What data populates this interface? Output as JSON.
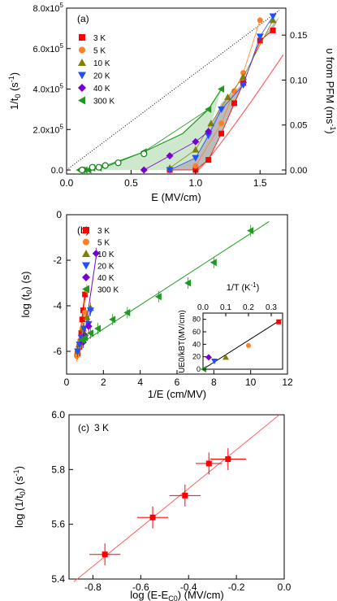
{
  "colors": {
    "3 K": "#ff0000",
    "5 K": "#ff7f27",
    "10 K": "#808000",
    "20 K": "#1f4fff",
    "40 K": "#7a00d0",
    "300 K": "#1e9a1e",
    "shade_gray": "#b4b4b4",
    "shade_green": "#c8e6c8",
    "fit_red": "#ff6060"
  },
  "chart_data": [
    {
      "panel": "(a)",
      "type": "scatter",
      "xlabel": "E (MV/cm)",
      "ylabel": "1/t0 (s-1)",
      "ylabel_right": "υ from PFM (ms-1)",
      "xlim": [
        0,
        1.7
      ],
      "ylim": [
        -20000,
        800000
      ],
      "ylim_right": [
        -0.0045,
        0.18
      ],
      "x_ticks": [
        "0.0",
        "0.5",
        "1.0",
        "1.5"
      ],
      "y_ticks": [
        "0.0",
        "2.0x10^5",
        "4.0x10^5",
        "6.0x10^5",
        "8.0x10^5"
      ],
      "y_ticks_right": [
        "0.00",
        "0.05",
        "0.10",
        "0.15"
      ],
      "legend": [
        "3 K",
        "5 K",
        "10 K",
        "20 K",
        "40 K",
        "300 K"
      ],
      "legend_position": "top-left",
      "series": [
        {
          "name": "3 K",
          "marker": "square",
          "x": [
            0.8,
            1.0,
            1.1,
            1.2,
            1.3,
            1.37,
            1.5,
            1.6
          ],
          "y": [
            0,
            0,
            50000,
            180000,
            330000,
            430000,
            640000,
            690000
          ]
        },
        {
          "name": "5 K",
          "marker": "circle",
          "x": [
            1.0,
            1.2,
            1.3,
            1.37,
            1.5
          ],
          "y": [
            20000,
            230000,
            390000,
            480000,
            740000
          ]
        },
        {
          "name": "10 K",
          "marker": "triangle-up",
          "x": [
            0.8,
            1.0,
            1.12,
            1.25,
            1.37,
            1.6
          ],
          "y": [
            10000,
            100000,
            230000,
            360000,
            460000,
            740000
          ]
        },
        {
          "name": "20 K",
          "marker": "triangle-down",
          "x": [
            0.8,
            1.0,
            1.1,
            1.2,
            1.37,
            1.5,
            1.6
          ],
          "y": [
            0,
            60000,
            170000,
            300000,
            420000,
            660000,
            760000
          ]
        },
        {
          "name": "40 K",
          "marker": "diamond",
          "x": [
            0.6,
            0.8,
            1.0,
            1.1
          ],
          "y": [
            0,
            70000,
            140000,
            190000
          ]
        },
        {
          "name": "300 K",
          "marker": "triangle-left",
          "x": [
            0.1,
            0.12,
            0.14,
            0.17,
            0.2,
            0.25,
            0.6,
            1.1,
            1.2
          ],
          "y": [
            0,
            0,
            0,
            0,
            10000,
            10000,
            90000,
            300000,
            400000
          ]
        },
        {
          "name": "PFM",
          "marker": "open-circle",
          "x": [
            0.12,
            0.2,
            0.25,
            0.3,
            0.4,
            0.6
          ],
          "y_right": [
            0.0,
            0.003,
            0.003,
            0.005,
            0.008,
            0.018
          ]
        }
      ]
    },
    {
      "panel": "(b)",
      "type": "scatter",
      "xlabel": "1/E (cm/MV)",
      "ylabel": "log (t0) (s)",
      "xlim": [
        0,
        12
      ],
      "ylim": [
        -7,
        0
      ],
      "x_ticks": [
        "0",
        "2",
        "4",
        "6",
        "8",
        "10",
        "12"
      ],
      "y_ticks": [
        "-6",
        "-4",
        "-2",
        "0"
      ],
      "legend": [
        "3 K",
        "5 K",
        "10 K",
        "20 K",
        "40 K",
        "300 K"
      ],
      "legend_position": "top-left",
      "series": [
        {
          "name": "3 K",
          "x": [
            0.6,
            0.7,
            0.75,
            0.8,
            0.85,
            0.9,
            1.0
          ],
          "y": [
            -6.1,
            -5.8,
            -5.6,
            -5.2,
            -4.6,
            -4.2,
            -3.5
          ]
        },
        {
          "name": "5 K",
          "x": [
            0.55,
            0.65,
            0.75,
            0.85,
            1.0,
            1.1
          ],
          "y": [
            -6.2,
            -5.9,
            -5.5,
            -5.0,
            -4.3,
            -3.3
          ]
        },
        {
          "name": "10 K",
          "x": [
            0.6,
            0.7,
            0.8,
            0.9,
            1.1,
            1.3
          ],
          "y": [
            -6.0,
            -5.7,
            -5.4,
            -5.0,
            -4.5,
            -4.1
          ]
        },
        {
          "name": "20 K",
          "x": [
            0.6,
            0.7,
            0.8,
            0.95,
            1.2,
            1.3
          ],
          "y": [
            -6.0,
            -5.7,
            -5.4,
            -5.0,
            -4.8,
            -4.2
          ]
        },
        {
          "name": "40 K",
          "x": [
            0.9,
            1.0,
            1.2,
            1.6
          ],
          "y": [
            -5.6,
            -5.3,
            -4.9,
            -1.7
          ]
        },
        {
          "name": "300 K",
          "x": [
            0.85,
            1.0,
            1.3,
            1.7,
            2.5,
            3.3,
            5.0,
            6.6,
            8.0,
            10.0
          ],
          "y": [
            -5.5,
            -5.4,
            -5.2,
            -5.0,
            -4.6,
            -4.3,
            -3.6,
            -3.0,
            -2.1,
            -0.7
          ]
        }
      ],
      "fit_lines": [
        {
          "name": "3 K",
          "x": [
            0.6,
            1.0
          ],
          "y": [
            -6.2,
            -3.4
          ]
        },
        {
          "name": "5 K",
          "x": [
            0.55,
            1.1
          ],
          "y": [
            -6.3,
            -3.2
          ]
        },
        {
          "name": "10 K",
          "x": [
            0.6,
            1.35
          ],
          "y": [
            -6.1,
            -4.1
          ]
        },
        {
          "name": "20 K",
          "x": [
            0.6,
            1.35
          ],
          "y": [
            -6.1,
            -4.1
          ]
        },
        {
          "name": "40 K",
          "x": [
            0.9,
            1.65
          ],
          "y": [
            -5.7,
            -1.6
          ]
        },
        {
          "name": "300 K",
          "x": [
            0.5,
            11.0
          ],
          "y": [
            -5.8,
            -0.3
          ]
        }
      ],
      "inset": {
        "type": "scatter",
        "xlabel": "1/T (K-1)",
        "ylabel": "UE0/kBT (MV/cm)",
        "xlim": [
          0,
          0.35
        ],
        "ylim": [
          0,
          90
        ],
        "x_ticks": [
          "0.0",
          "0.1",
          "0.2",
          "0.3"
        ],
        "y_ticks": [
          "0",
          "20",
          "40",
          "60",
          "80"
        ],
        "points": [
          {
            "series": "300 K",
            "x": 0.0033,
            "y": 0
          },
          {
            "series": "40 K",
            "x": 0.025,
            "y": 19
          },
          {
            "series": "20 K",
            "x": 0.05,
            "y": 13
          },
          {
            "series": "10 K",
            "x": 0.1,
            "y": 19
          },
          {
            "series": "5 K",
            "x": 0.2,
            "y": 38
          },
          {
            "series": "3 K",
            "x": 0.333,
            "y": 76
          }
        ],
        "fit_line": {
          "x": [
            0.0,
            0.345
          ],
          "y": [
            0,
            80
          ]
        }
      }
    },
    {
      "panel": "(c)",
      "type": "scatter",
      "annotation": "3 K",
      "xlabel": "log (E-EC0) (MV/cm)",
      "ylabel": "log (1/t0) (s-1)",
      "xlim": [
        -0.9,
        0.0
      ],
      "ylim": [
        5.4,
        6.0
      ],
      "x_ticks": [
        "-0.8",
        "-0.6",
        "-0.4",
        "-0.2",
        "0.0"
      ],
      "y_ticks": [
        "5.4",
        "5.6",
        "5.8",
        "6.0"
      ],
      "series": [
        {
          "name": "3 K",
          "x": [
            -0.75,
            -0.55,
            -0.415,
            -0.315,
            -0.235
          ],
          "y": [
            5.49,
            5.625,
            5.705,
            5.822,
            5.838
          ],
          "xerr": [
            0.065,
            0.065,
            0.065,
            0.055,
            0.075
          ],
          "yerr": [
            0.04,
            0.04,
            0.04,
            0.04,
            0.04
          ]
        }
      ],
      "fit_line": {
        "x": [
          -0.88,
          -0.02
        ],
        "y": [
          5.39,
          6.0
        ]
      }
    }
  ],
  "labels": {
    "a": {
      "panel_label": "(a)",
      "x_title": "E (MV/cm)",
      "y_title_main": "1/t",
      "y_title_sub": "0",
      "y_title_unit": " (s",
      "y_title_sup": "-1",
      "y_title_close": ")",
      "y2_title_main": "υ from PFM (ms",
      "y2_title_sup": "-1",
      "y2_title_close": ")"
    },
    "b": {
      "panel_label": "(b)",
      "x_title": "1/E (cm/MV)",
      "y_title_main": "log (t",
      "y_title_sub": "0",
      "y_title_close": ") (s)",
      "inset_x_main": "1/T (K",
      "inset_x_sup": "-1",
      "inset_x_close": ")",
      "inset_y": "UE0/kBT(MV/cm)"
    },
    "c": {
      "panel_label": "(c)",
      "annotation": "3 K",
      "x_title_main": "log (E-E",
      "x_title_sub": "C0",
      "x_title_close": ") (MV/cm)",
      "y_title_main": "log (1/t",
      "y_title_sub": "0",
      "y_title_close": ") (s",
      "y_title_sup": "-1",
      "y_title_end": ")"
    }
  }
}
